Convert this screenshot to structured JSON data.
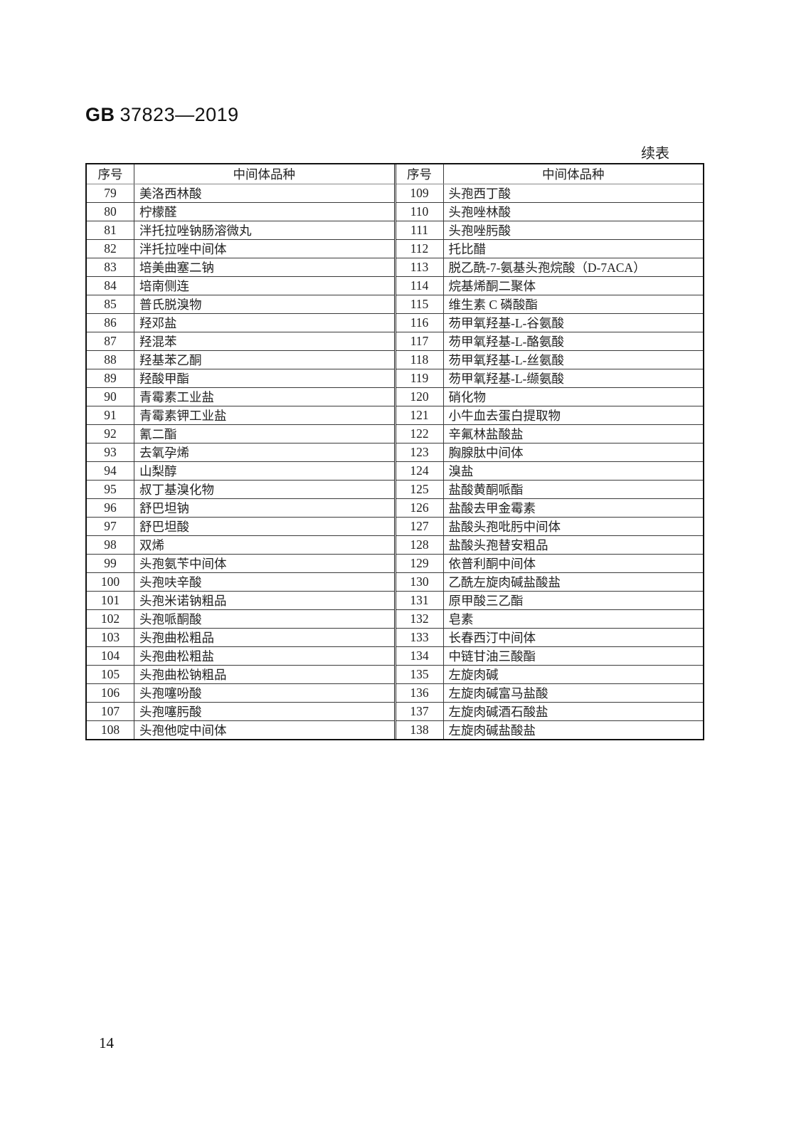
{
  "page": {
    "doc_code_bold": "GB",
    "doc_code_rest": "37823—2019",
    "continuation_label": "续表",
    "page_number": "14"
  },
  "table": {
    "col_headers": {
      "seq": "序号",
      "name": "中间体品种"
    },
    "left_rows": [
      {
        "num": "79",
        "name": "美洛西林酸"
      },
      {
        "num": "80",
        "name": "柠檬醛"
      },
      {
        "num": "81",
        "name": "泮托拉唑钠肠溶微丸"
      },
      {
        "num": "82",
        "name": "泮托拉唑中间体"
      },
      {
        "num": "83",
        "name": "培美曲塞二钠"
      },
      {
        "num": "84",
        "name": "培南侧连"
      },
      {
        "num": "85",
        "name": "普氏脱溴物"
      },
      {
        "num": "86",
        "name": "羟邓盐"
      },
      {
        "num": "87",
        "name": "羟混苯"
      },
      {
        "num": "88",
        "name": "羟基苯乙酮"
      },
      {
        "num": "89",
        "name": "羟酸甲酯"
      },
      {
        "num": "90",
        "name": "青霉素工业盐"
      },
      {
        "num": "91",
        "name": "青霉素钾工业盐"
      },
      {
        "num": "92",
        "name": "氰二酯"
      },
      {
        "num": "93",
        "name": "去氧孕烯"
      },
      {
        "num": "94",
        "name": "山梨醇"
      },
      {
        "num": "95",
        "name": "叔丁基溴化物"
      },
      {
        "num": "96",
        "name": "舒巴坦钠"
      },
      {
        "num": "97",
        "name": "舒巴坦酸"
      },
      {
        "num": "98",
        "name": "双烯"
      },
      {
        "num": "99",
        "name": "头孢氨苄中间体"
      },
      {
        "num": "100",
        "name": "头孢呋辛酸"
      },
      {
        "num": "101",
        "name": "头孢米诺钠粗品"
      },
      {
        "num": "102",
        "name": "头孢哌酮酸"
      },
      {
        "num": "103",
        "name": "头孢曲松粗品"
      },
      {
        "num": "104",
        "name": "头孢曲松粗盐"
      },
      {
        "num": "105",
        "name": "头孢曲松钠粗品"
      },
      {
        "num": "106",
        "name": "头孢噻吩酸"
      },
      {
        "num": "107",
        "name": "头孢噻肟酸"
      },
      {
        "num": "108",
        "name": "头孢他啶中间体"
      }
    ],
    "right_rows": [
      {
        "num": "109",
        "name": "头孢西丁酸"
      },
      {
        "num": "110",
        "name": "头孢唑林酸"
      },
      {
        "num": "111",
        "name": "头孢唑肟酸"
      },
      {
        "num": "112",
        "name": "托比醋"
      },
      {
        "num": "113",
        "name": "脱乙酰-7-氨基头孢烷酸（D-7ACA）"
      },
      {
        "num": "114",
        "name": "烷基烯酮二聚体"
      },
      {
        "num": "115",
        "name": "维生素 C 磷酸酯"
      },
      {
        "num": "116",
        "name": "芴甲氧羟基-L-谷氨酸"
      },
      {
        "num": "117",
        "name": "芴甲氧羟基-L-酪氨酸"
      },
      {
        "num": "118",
        "name": "芴甲氧羟基-L-丝氨酸"
      },
      {
        "num": "119",
        "name": "芴甲氧羟基-L-缬氨酸"
      },
      {
        "num": "120",
        "name": "硝化物"
      },
      {
        "num": "121",
        "name": "小牛血去蛋白提取物"
      },
      {
        "num": "122",
        "name": "辛氟林盐酸盐"
      },
      {
        "num": "123",
        "name": "胸腺肽中间体"
      },
      {
        "num": "124",
        "name": "溴盐"
      },
      {
        "num": "125",
        "name": "盐酸黄酮哌酯"
      },
      {
        "num": "126",
        "name": "盐酸去甲金霉素"
      },
      {
        "num": "127",
        "name": "盐酸头孢吡肟中间体"
      },
      {
        "num": "128",
        "name": "盐酸头孢替安粗品"
      },
      {
        "num": "129",
        "name": "依普利酮中间体"
      },
      {
        "num": "130",
        "name": "乙酰左旋肉碱盐酸盐"
      },
      {
        "num": "131",
        "name": "原甲酸三乙酯"
      },
      {
        "num": "132",
        "name": "皂素"
      },
      {
        "num": "133",
        "name": "长春西汀中间体"
      },
      {
        "num": "134",
        "name": "中链甘油三酸酯"
      },
      {
        "num": "135",
        "name": "左旋肉碱"
      },
      {
        "num": "136",
        "name": "左旋肉碱富马盐酸"
      },
      {
        "num": "137",
        "name": "左旋肉碱酒石酸盐"
      },
      {
        "num": "138",
        "name": "左旋肉碱盐酸盐"
      }
    ]
  }
}
